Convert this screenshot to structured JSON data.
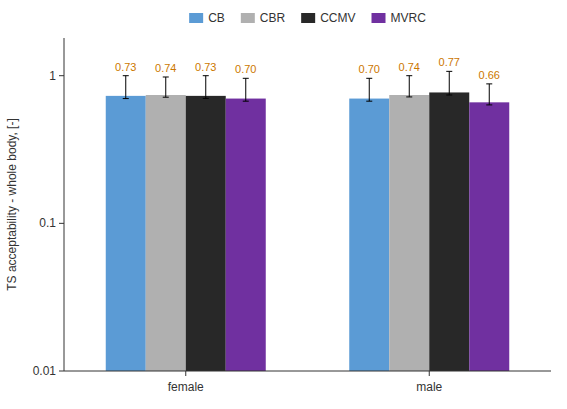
{
  "chart_data": {
    "type": "bar",
    "categories": [
      "female",
      "male"
    ],
    "series": [
      {
        "name": "CB",
        "color": "#5B9BD5",
        "values": [
          0.73,
          0.7
        ],
        "value_labels": [
          "0.73",
          "0.70"
        ],
        "err_low": [
          0.03,
          0.028
        ],
        "err_high": [
          0.27,
          0.26
        ]
      },
      {
        "name": "CBR",
        "color": "#B0B0B0",
        "values": [
          0.74,
          0.74
        ],
        "value_labels": [
          "0.74",
          "0.74"
        ],
        "err_low": [
          0.025,
          0.022
        ],
        "err_high": [
          0.24,
          0.26
        ]
      },
      {
        "name": "CCMV",
        "color": "#282828",
        "values": [
          0.73,
          0.77
        ],
        "value_labels": [
          "0.73",
          "0.77"
        ],
        "err_low": [
          0.028,
          0.03
        ],
        "err_high": [
          0.27,
          0.3
        ]
      },
      {
        "name": "MVRC",
        "color": "#7030A0",
        "values": [
          0.7,
          0.66
        ],
        "value_labels": [
          "0.70",
          "0.66"
        ],
        "err_low": [
          0.028,
          0.026
        ],
        "err_high": [
          0.26,
          0.22
        ]
      }
    ],
    "ylabel": "TS acceptability - whole body, [-]",
    "log": "y",
    "ylim": [
      0.01,
      1.8
    ],
    "yticks": [
      0.01,
      0.1,
      1
    ],
    "grid": false,
    "legend": "top",
    "data_labels": true
  }
}
